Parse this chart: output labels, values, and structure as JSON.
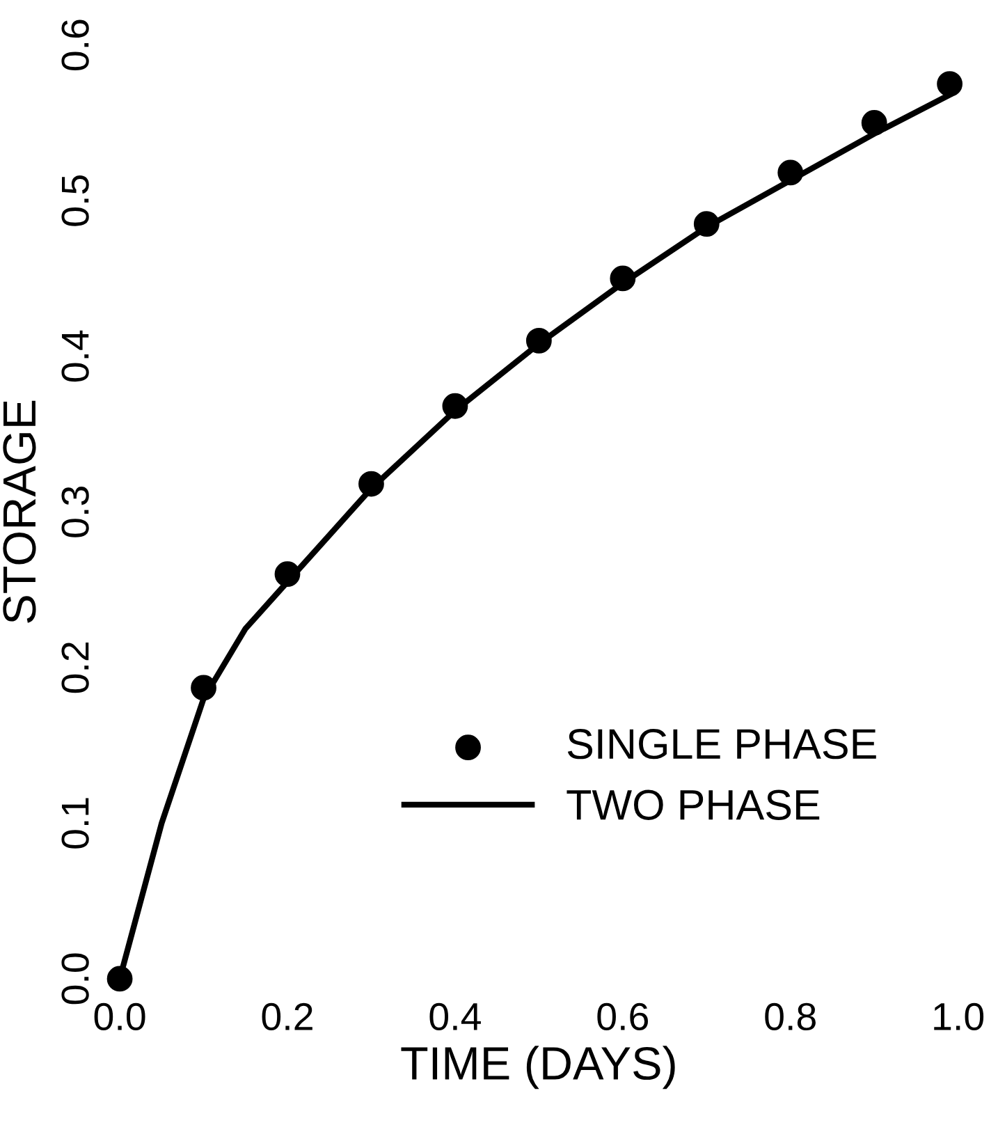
{
  "chart_data": {
    "type": "scatter",
    "xlabel": "TIME (DAYS)",
    "ylabel": "STORAGE",
    "xlim": [
      0,
      1.0
    ],
    "ylim": [
      0,
      0.6
    ],
    "xticks": [
      {
        "value": 0,
        "label": "0.0"
      },
      0.2,
      0.4,
      0.6,
      0.8,
      {
        "value": 1,
        "label": "1.0"
      }
    ],
    "yticks": [
      {
        "value": 0,
        "label": "0.0"
      },
      0.1,
      0.2,
      0.3,
      0.4,
      0.5,
      0.6
    ],
    "grid": false,
    "legend": "bottom right",
    "series": [
      {
        "name": "SINGLE PHASE",
        "marker": "circle",
        "color": "#000000",
        "x": [
          0,
          0.1,
          0.2,
          0.3,
          0.4,
          0.5,
          0.6,
          0.7,
          0.8,
          0.9,
          0.99
        ],
        "values": [
          0,
          0.187,
          0.26,
          0.318,
          0.368,
          0.41,
          0.45,
          0.485,
          0.518,
          0.55,
          0.575
        ]
      },
      {
        "name": "TWO PHASE",
        "type": "line",
        "marker": "none",
        "line_style": "solid",
        "color": "#000000",
        "x": [
          0,
          0.05,
          0.1,
          0.15,
          0.2,
          0.3,
          0.4,
          0.5,
          0.6,
          0.7,
          0.8,
          0.9,
          0.99
        ],
        "values": [
          0,
          0.1,
          0.18,
          0.225,
          0.255,
          0.315,
          0.365,
          0.408,
          0.447,
          0.483,
          0.513,
          0.543,
          0.568
        ]
      }
    ]
  }
}
